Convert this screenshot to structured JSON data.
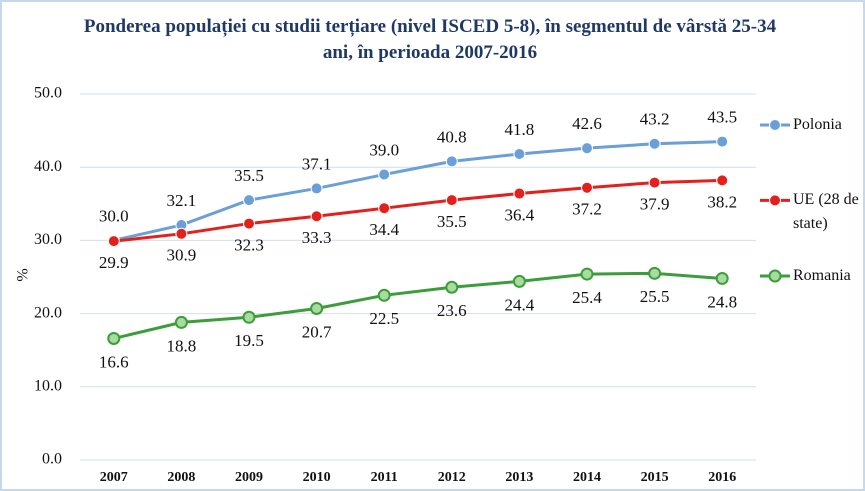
{
  "chart_data": {
    "type": "line",
    "title": "Ponderea populației cu studii terțiare (nivel ISCED 5-8), în segmentul de vârstă 25-34 ani, în perioada 2007-2016",
    "y_label": "%",
    "categories": [
      "2007",
      "2008",
      "2009",
      "2010",
      "2011",
      "2012",
      "2013",
      "2014",
      "2015",
      "2016"
    ],
    "series": [
      {
        "name": "Polonia",
        "color": "#6a9fd8",
        "values": [
          30.0,
          32.1,
          35.5,
          37.1,
          39.0,
          40.8,
          41.8,
          42.6,
          43.2,
          43.5
        ],
        "value_labels": [
          "30.0",
          "32.1",
          "35.5",
          "37.1",
          "39.0",
          "40.8",
          "41.8",
          "42.6",
          "43.2",
          "43.5"
        ]
      },
      {
        "name": "UE (28 de state)",
        "color": "#e3201b",
        "values": [
          29.9,
          30.9,
          32.3,
          33.3,
          34.4,
          35.5,
          36.4,
          37.2,
          37.9,
          38.2
        ],
        "value_labels": [
          "29.9",
          "30.9",
          "32.3",
          "33.3",
          "34.4",
          "35.5",
          "36.4",
          "37.2",
          "37.9",
          "38.2"
        ]
      },
      {
        "name": "Romania",
        "color": "#3c9e3a",
        "values": [
          16.6,
          18.8,
          19.5,
          20.7,
          22.5,
          23.6,
          24.4,
          25.4,
          25.5,
          24.8
        ],
        "value_labels": [
          "16.6",
          "18.8",
          "19.5",
          "20.7",
          "22.5",
          "23.6",
          "24.4",
          "25.4",
          "25.5",
          "24.8"
        ]
      }
    ],
    "ylim": [
      0,
      50
    ],
    "yticks": [
      {
        "value": 0,
        "label": "0.0"
      },
      {
        "value": 10,
        "label": "10.0"
      },
      {
        "value": 20,
        "label": "20.0"
      },
      {
        "value": 30,
        "label": "30.0"
      },
      {
        "value": 40,
        "label": "40.0"
      },
      {
        "value": 50,
        "label": "50.0"
      }
    ],
    "grid": true,
    "legend": "right"
  }
}
